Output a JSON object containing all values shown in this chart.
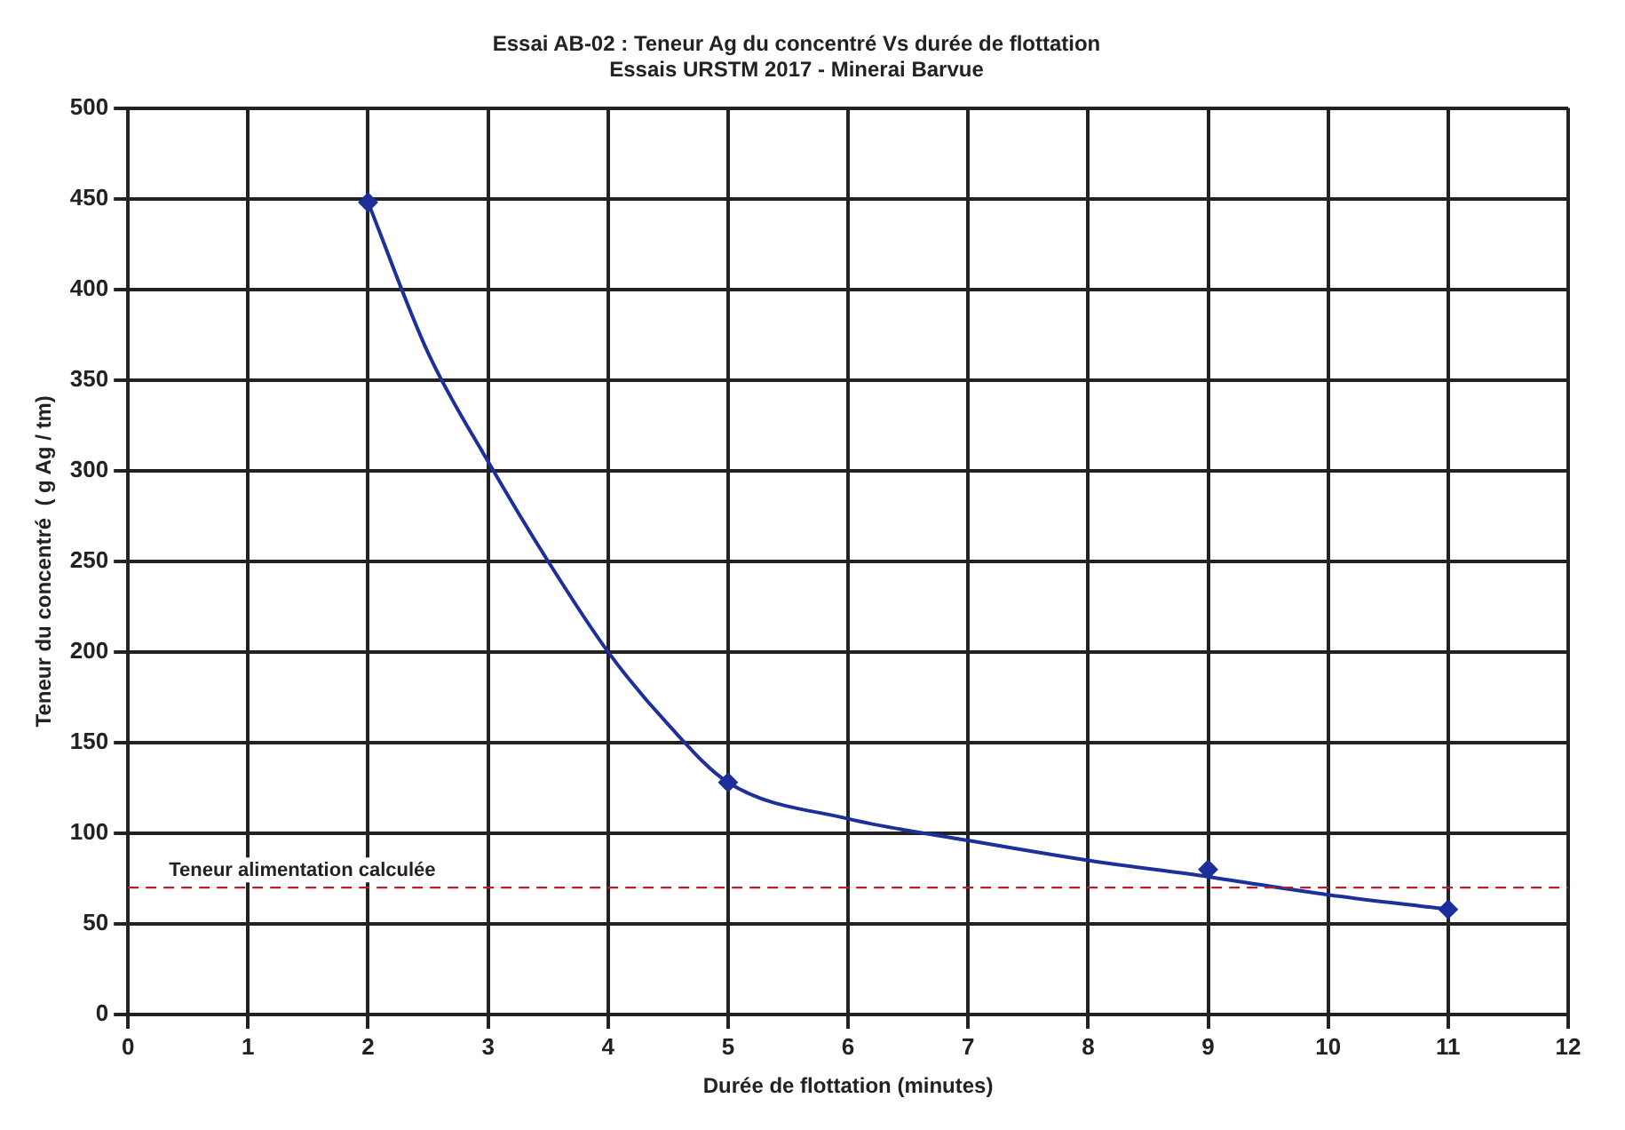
{
  "chart_data": {
    "type": "scatter",
    "title": "Essai AB-02 : Teneur Ag du concentré Vs durée de flottation",
    "subtitle": "Essais URSTM 2017 - Minerai Barvue",
    "xlabel": "Durée de flottation (minutes)",
    "ylabel": "Teneur du concentré  ( g Ag / tm)",
    "series": [
      {
        "color": "#1c2f9a",
        "marker": "diamond",
        "x": [
          2,
          5,
          9,
          11
        ],
        "values": [
          448,
          128,
          80,
          58
        ]
      },
      {
        "type": "line",
        "color": "#1c2f9a",
        "marker": "none",
        "line_style": "solid",
        "x": [
          2,
          2.5,
          3,
          3.5,
          4,
          4.5,
          5,
          6,
          7,
          8,
          9,
          10,
          11
        ],
        "values": [
          448,
          365,
          305,
          250,
          200,
          160,
          128,
          108,
          96,
          85,
          76,
          66,
          58
        ]
      }
    ],
    "xlim": [
      0,
      12
    ],
    "xticks": [
      0,
      1,
      2,
      3,
      4,
      5,
      6,
      7,
      8,
      9,
      10,
      11,
      12
    ],
    "ylim": [
      0,
      500
    ],
    "yticks": [
      0,
      50,
      100,
      150,
      200,
      250,
      300,
      350,
      400,
      450,
      500
    ],
    "ref_lines": [
      {
        "axis": "y",
        "value": 70,
        "label": "Teneur alimentation calculée",
        "color": "#b0202e",
        "line_style": "dashed"
      }
    ],
    "grid": true,
    "legend": false
  }
}
